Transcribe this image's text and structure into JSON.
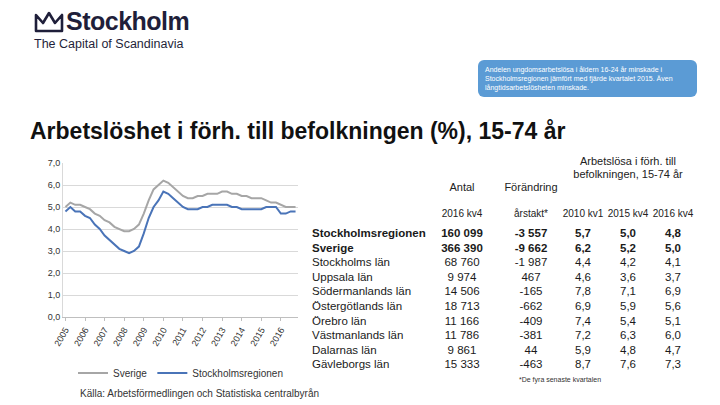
{
  "logo": {
    "name": "Stockholm",
    "tagline": "The Capital of Scandinavia"
  },
  "callout": "Andelen ungdomsarbetslösa i åldern 16-24 år minskade i Stockholmsregionen jämfört med fjärde kvartalet 2015. Även långtidsarbetslösheten minskade.",
  "chart_data": {
    "type": "line",
    "title": "Arbetslöshet i förh. till befolkningen (%), 15-74 år",
    "categories": [
      "2005",
      null,
      null,
      null,
      "2006",
      null,
      null,
      null,
      "2007",
      null,
      null,
      null,
      "2008",
      null,
      null,
      null,
      "2009",
      null,
      null,
      null,
      "2010",
      null,
      null,
      null,
      "2011",
      null,
      null,
      null,
      "2012",
      null,
      null,
      null,
      "2013",
      null,
      null,
      null,
      "2014",
      null,
      null,
      null,
      "2015",
      null,
      null,
      null,
      "2016",
      null,
      null,
      null
    ],
    "series": [
      {
        "name": "Sverige",
        "color": "#a6a6a6",
        "values": [
          5.0,
          5.2,
          5.1,
          5.1,
          5.0,
          4.9,
          4.7,
          4.6,
          4.4,
          4.3,
          4.1,
          4.0,
          3.9,
          3.9,
          4.0,
          4.2,
          4.7,
          5.3,
          5.8,
          6.0,
          6.2,
          6.1,
          5.9,
          5.7,
          5.5,
          5.4,
          5.4,
          5.5,
          5.5,
          5.6,
          5.6,
          5.6,
          5.7,
          5.7,
          5.6,
          5.6,
          5.5,
          5.5,
          5.4,
          5.4,
          5.4,
          5.3,
          5.2,
          5.2,
          5.1,
          5.0,
          5.0,
          5.0
        ]
      },
      {
        "name": "Stockholmsregionen",
        "color": "#4a74b8",
        "values": [
          4.8,
          5.0,
          4.8,
          4.8,
          4.6,
          4.5,
          4.2,
          4.0,
          3.7,
          3.5,
          3.3,
          3.1,
          3.0,
          2.9,
          3.0,
          3.2,
          3.8,
          4.5,
          5.0,
          5.3,
          5.7,
          5.6,
          5.4,
          5.2,
          5.0,
          4.9,
          4.9,
          4.9,
          5.0,
          5.0,
          5.1,
          5.1,
          5.1,
          5.1,
          5.0,
          5.0,
          4.9,
          4.9,
          4.9,
          4.9,
          4.9,
          5.0,
          5.0,
          5.0,
          4.7,
          4.7,
          4.8,
          4.8
        ]
      }
    ],
    "ylim": [
      0,
      7
    ],
    "yticks": [
      {
        "value": 0,
        "label": "0,0"
      },
      {
        "value": 1,
        "label": "1,0"
      },
      {
        "value": 2,
        "label": "2,0"
      },
      {
        "value": 3,
        "label": "3,0"
      },
      {
        "value": 4,
        "label": "4,0"
      },
      {
        "value": 5,
        "label": "5,0"
      },
      {
        "value": 6,
        "label": "6,0"
      },
      {
        "value": 7,
        "label": "7,0"
      }
    ],
    "grid": true,
    "legend": "bottom",
    "line_style": "solid"
  },
  "table": {
    "header": {
      "antal": [
        "Antal",
        "2016 kv4"
      ],
      "change": [
        "Förändring",
        "årstakt*"
      ],
      "group": "Arbetslösa i förh. till befolkningen, 15-74 år",
      "periods": [
        "2010 kv1",
        "2015 kv4",
        "2016 kv4"
      ]
    },
    "rows": [
      [
        "Stockholmsregionen",
        "160 099",
        "-3 557",
        "5,7",
        "5,0",
        "4,8"
      ],
      [
        "Sverige",
        "366 390",
        "-9 662",
        "6,2",
        "5,2",
        "5,0"
      ],
      [
        "Stockholms län",
        "68 760",
        "-1 987",
        "4,4",
        "4,2",
        "4,1"
      ],
      [
        "Uppsala län",
        "9 974",
        "467",
        "4,6",
        "3,6",
        "3,7"
      ],
      [
        "Södermanlands län",
        "14 506",
        "-165",
        "7,8",
        "7,1",
        "6,9"
      ],
      [
        "Östergötlands län",
        "18 713",
        "-662",
        "6,9",
        "5,9",
        "5,6"
      ],
      [
        "Örebro län",
        "11 166",
        "-409",
        "7,4",
        "5,4",
        "5,1"
      ],
      [
        "Västmanlands län",
        "11 786",
        "-381",
        "7,2",
        "6,3",
        "6,0"
      ],
      [
        "Dalarnas län",
        "9 861",
        "44",
        "5,9",
        "4,8",
        "4,7"
      ],
      [
        "Gävleborgs län",
        "15 333",
        "-463",
        "8,7",
        "7,6",
        "7,3"
      ]
    ]
  },
  "footnote": "*De fyra senaste kvartalen",
  "source": "Källa: Arbetsförmedlingen och Statistiska centralbyrån"
}
